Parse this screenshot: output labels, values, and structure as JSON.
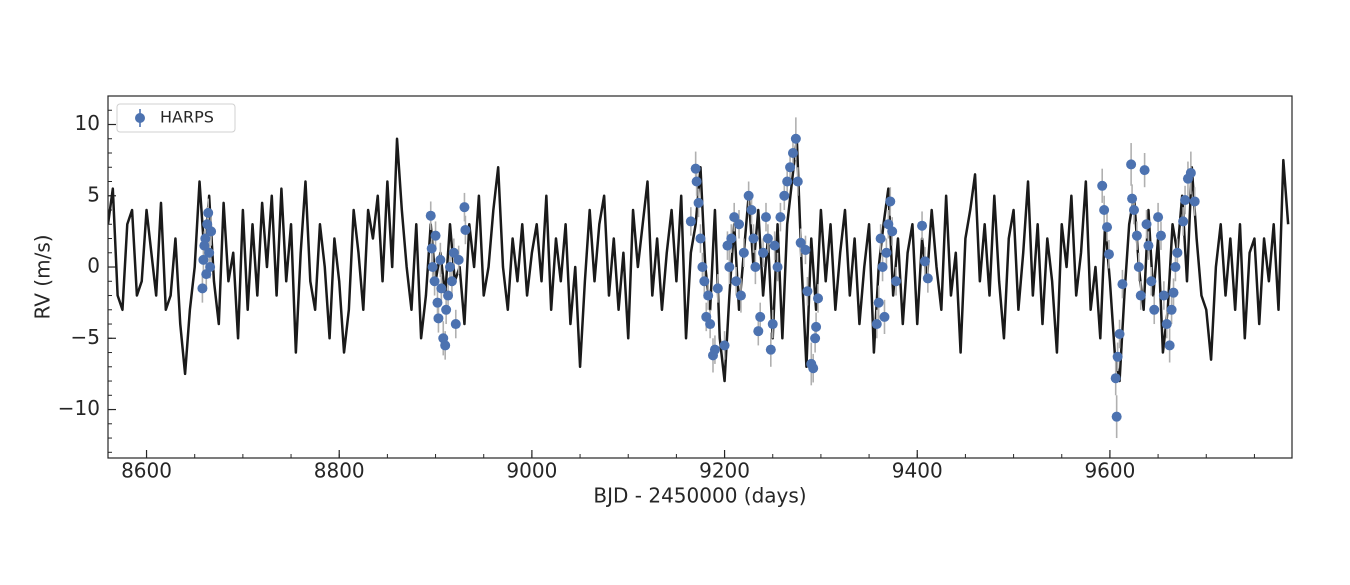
{
  "chart_data": {
    "type": "line",
    "xlabel": "BJD - 2450000 (days)",
    "ylabel": "RV (m/s)",
    "xlim": [
      8560,
      9789
    ],
    "ylim": [
      -13.4,
      12
    ],
    "xticks": [
      8600,
      8800,
      9000,
      9200,
      9400,
      9600
    ],
    "yticks": [
      {
        "value": -10,
        "label": "−10"
      },
      {
        "value": -5,
        "label": "−5"
      },
      0,
      5,
      10
    ],
    "xminor_step": 50,
    "yminor_step": 1,
    "legend": "upper left",
    "series": [
      {
        "kind": "line",
        "color": "#1a1a1a",
        "x": [
          8560,
          8565,
          8570,
          8575,
          8580,
          8585,
          8590,
          8595,
          8600,
          8605,
          8610,
          8615,
          8620,
          8625,
          8630,
          8635,
          8640,
          8645,
          8650,
          8655,
          8660,
          8665,
          8670,
          8675,
          8680,
          8685,
          8690,
          8695,
          8700,
          8705,
          8710,
          8715,
          8720,
          8725,
          8730,
          8735,
          8740,
          8745,
          8750,
          8755,
          8760,
          8765,
          8770,
          8775,
          8780,
          8785,
          8790,
          8795,
          8800,
          8805,
          8810,
          8815,
          8820,
          8825,
          8830,
          8835,
          8840,
          8845,
          8850,
          8855,
          8860,
          8865,
          8870,
          8875,
          8880,
          8885,
          8890,
          8895,
          8900,
          8905,
          8910,
          8915,
          8920,
          8925,
          8930,
          8935,
          8940,
          8945,
          8950,
          8955,
          8960,
          8965,
          8970,
          8975,
          8980,
          8985,
          8990,
          8995,
          9000,
          9005,
          9010,
          9015,
          9020,
          9025,
          9030,
          9035,
          9040,
          9045,
          9050,
          9055,
          9060,
          9065,
          9070,
          9075,
          9080,
          9085,
          9090,
          9095,
          9100,
          9105,
          9110,
          9115,
          9120,
          9125,
          9130,
          9135,
          9140,
          9145,
          9150,
          9155,
          9160,
          9165,
          9170,
          9175,
          9180,
          9185,
          9190,
          9195,
          9200,
          9205,
          9210,
          9215,
          9220,
          9225,
          9230,
          9235,
          9240,
          9245,
          9250,
          9255,
          9260,
          9265,
          9270,
          9275,
          9280,
          9285,
          9290,
          9295,
          9300,
          9305,
          9310,
          9315,
          9320,
          9325,
          9330,
          9335,
          9340,
          9345,
          9350,
          9355,
          9360,
          9365,
          9370,
          9375,
          9380,
          9385,
          9390,
          9395,
          9400,
          9405,
          9410,
          9415,
          9420,
          9425,
          9430,
          9435,
          9440,
          9445,
          9450,
          9455,
          9460,
          9465,
          9470,
          9475,
          9480,
          9485,
          9490,
          9495,
          9500,
          9505,
          9510,
          9515,
          9520,
          9525,
          9530,
          9535,
          9540,
          9545,
          9550,
          9555,
          9560,
          9565,
          9570,
          9575,
          9580,
          9585,
          9590,
          9595,
          9600,
          9605,
          9610,
          9615,
          9620,
          9625,
          9630,
          9635,
          9640,
          9645,
          9650,
          9655,
          9660,
          9665,
          9670,
          9675,
          9680,
          9685,
          9690,
          9695,
          9700,
          9705,
          9710,
          9715,
          9720,
          9725,
          9730,
          9735,
          9740,
          9745,
          9750,
          9755,
          9760,
          9765,
          9770,
          9775,
          9780,
          9785
        ],
        "values": [
          3,
          5.5,
          -2,
          -3,
          3,
          4,
          -2,
          -1,
          4,
          1,
          -2,
          4.5,
          -3,
          -2,
          2,
          -4,
          -7.5,
          -3,
          0,
          6,
          1,
          5,
          -1,
          -4,
          4.5,
          -1,
          1,
          -5,
          4,
          -3,
          3,
          -2,
          4.5,
          0,
          5,
          -2,
          5.5,
          -1,
          3,
          -6,
          1,
          6,
          -1,
          -3,
          3,
          0,
          -5,
          2,
          -1,
          -6,
          -3,
          4,
          1,
          -3,
          4,
          2,
          5,
          -1,
          6,
          0,
          9,
          4,
          0,
          -3,
          3,
          -5,
          -2,
          3,
          -1,
          1,
          -2,
          3,
          -1,
          0,
          -4,
          3,
          0,
          5,
          -2,
          0,
          4,
          7,
          0,
          -3,
          2,
          -1,
          3,
          -2,
          1,
          3,
          -1,
          5,
          -3,
          2,
          -1,
          3,
          -4,
          0,
          -7,
          -1,
          4,
          -1,
          3,
          5,
          -2,
          2,
          -3,
          1,
          -5,
          4,
          0,
          3,
          6,
          -2,
          2,
          -3,
          1,
          4,
          -1,
          5,
          -5,
          1,
          3,
          7,
          0,
          -3,
          4,
          -5,
          -8,
          -2,
          3,
          -3,
          1,
          5,
          0,
          4,
          -2,
          2,
          -5,
          3,
          -5,
          3,
          6,
          9,
          0,
          -7,
          2,
          -3,
          4,
          -1,
          3,
          -3,
          1,
          4,
          -2,
          2,
          -4,
          0,
          3,
          -6,
          0,
          3,
          5.5,
          -2,
          2,
          -4,
          1,
          3,
          -4,
          2,
          -1,
          4,
          0,
          -3,
          5,
          -2,
          1,
          -6,
          2,
          4,
          6.5,
          -1,
          3,
          -2,
          5,
          -1,
          -5,
          2,
          4,
          -3,
          1,
          6,
          -2,
          3,
          -4,
          2,
          -1,
          -6,
          3,
          0,
          5,
          -2,
          1,
          6,
          -3,
          0,
          -5,
          3,
          -1,
          -6,
          -8,
          -2,
          3,
          5,
          0,
          -3,
          4,
          -2,
          2,
          -6,
          -3,
          3,
          1,
          5,
          -1,
          7,
          2,
          -2,
          -3,
          -6.5,
          0,
          3,
          -2,
          2,
          -3,
          3,
          -5,
          1,
          2,
          -4,
          2,
          -1,
          3,
          -3,
          7.5,
          3
        ]
      },
      {
        "kind": "errorbar",
        "name": "HARPS",
        "color": "#4c72b0",
        "error_color": "#b0b0b0",
        "x": [
          8658,
          8659,
          8660,
          8661,
          8662,
          8663,
          8664,
          8665,
          8666,
          8667,
          8895,
          8896,
          8897,
          8899,
          8900,
          8902,
          8903,
          8905,
          8906,
          8908,
          8910,
          8911,
          8913,
          8915,
          8917,
          8919,
          8930,
          8931,
          8921,
          8924,
          9165,
          9170,
          9171,
          9173,
          9175,
          9177,
          9179,
          9181,
          9183,
          9185,
          9188,
          9190,
          9193,
          9200,
          9203,
          9205,
          9207,
          9210,
          9212,
          9215,
          9217,
          9220,
          9225,
          9228,
          9230,
          9232,
          9235,
          9237,
          9240,
          9243,
          9245,
          9248,
          9250,
          9252,
          9255,
          9258,
          9262,
          9265,
          9268,
          9271,
          9274,
          9276,
          9279,
          9284,
          9286,
          9290,
          9292,
          9294,
          9295,
          9297,
          9358,
          9360,
          9362,
          9364,
          9366,
          9368,
          9370,
          9372,
          9374,
          9378,
          9405,
          9408,
          9411,
          9592,
          9594,
          9597,
          9599,
          9606,
          9608,
          9607,
          9610,
          9613,
          9622,
          9623,
          9625,
          9628,
          9630,
          9632,
          9636,
          9638,
          9640,
          9643,
          9646,
          9650,
          9653,
          9656,
          9659,
          9662,
          9664,
          9666,
          9668,
          9670,
          9676,
          9678,
          9681,
          9684,
          9688
        ],
        "values": [
          -1.5,
          0.5,
          1.5,
          2,
          -0.5,
          3,
          3.8,
          1,
          0,
          2.5,
          3.6,
          1.3,
          0,
          -1,
          2.2,
          -2.5,
          -3.6,
          0.5,
          -1.5,
          -5,
          -5.5,
          -3,
          -2,
          0,
          -1,
          1,
          4.2,
          2.6,
          -4,
          0.5,
          3.2,
          6.9,
          6,
          4.5,
          2,
          0,
          -1,
          -3.5,
          -2,
          -4,
          -6.2,
          -5.8,
          -1.5,
          -5.5,
          1.5,
          0,
          2,
          3.5,
          -1,
          3,
          -2,
          1,
          5,
          4,
          2,
          0,
          -4.5,
          -3.5,
          1,
          3.5,
          2,
          -5.8,
          -4,
          1.5,
          0,
          3.5,
          5,
          6,
          7,
          8,
          9,
          6,
          1.7,
          1.2,
          -1.7,
          -6.8,
          -7.1,
          -5,
          -4.2,
          -2.2,
          -4,
          -2.5,
          2,
          0,
          -3.5,
          1,
          3,
          4.6,
          2.5,
          -1,
          2.9,
          0.4,
          -0.8,
          5.7,
          4,
          2.8,
          0.9,
          -7.8,
          -6.3,
          -10.5,
          -4.7,
          -1.2,
          7.2,
          4.8,
          4,
          2.2,
          0,
          -2,
          6.8,
          3,
          1.5,
          -1,
          -3,
          3.5,
          2.2,
          -2,
          -4,
          -5.5,
          -3,
          -1.8,
          0,
          1,
          3.2,
          4.7,
          6.2,
          6.6,
          4.6
        ],
        "errors": [
          1,
          1.2,
          1,
          0.8,
          1,
          1.2,
          1,
          1,
          0.8,
          1,
          1,
          1,
          1.2,
          1,
          1,
          1,
          1,
          1.2,
          1,
          1.2,
          1,
          1,
          1,
          1.2,
          1,
          1,
          1,
          1,
          1,
          1,
          1,
          1.2,
          1,
          1,
          1,
          1,
          1.2,
          1,
          1,
          1,
          1.2,
          1,
          1,
          1,
          1,
          1.2,
          1,
          1,
          1,
          1,
          1.2,
          1,
          1,
          1,
          1,
          1.2,
          1,
          1,
          1,
          1,
          1,
          1.2,
          1,
          1,
          1,
          1,
          1,
          1.2,
          1,
          1,
          1.5,
          1,
          1,
          1,
          1,
          1.5,
          1,
          1,
          1,
          1,
          1,
          1.2,
          1,
          1,
          1.2,
          1,
          1,
          1,
          1,
          1,
          1,
          1,
          1,
          1.2,
          1,
          1,
          1,
          1.2,
          1,
          1.5,
          1,
          1,
          1.5,
          1,
          1,
          1,
          1,
          1,
          1.2,
          1,
          1,
          1,
          1,
          1,
          1,
          1,
          1,
          1.2,
          1,
          1,
          1,
          1,
          1,
          1,
          1.2,
          1.5,
          1
        ]
      }
    ]
  }
}
